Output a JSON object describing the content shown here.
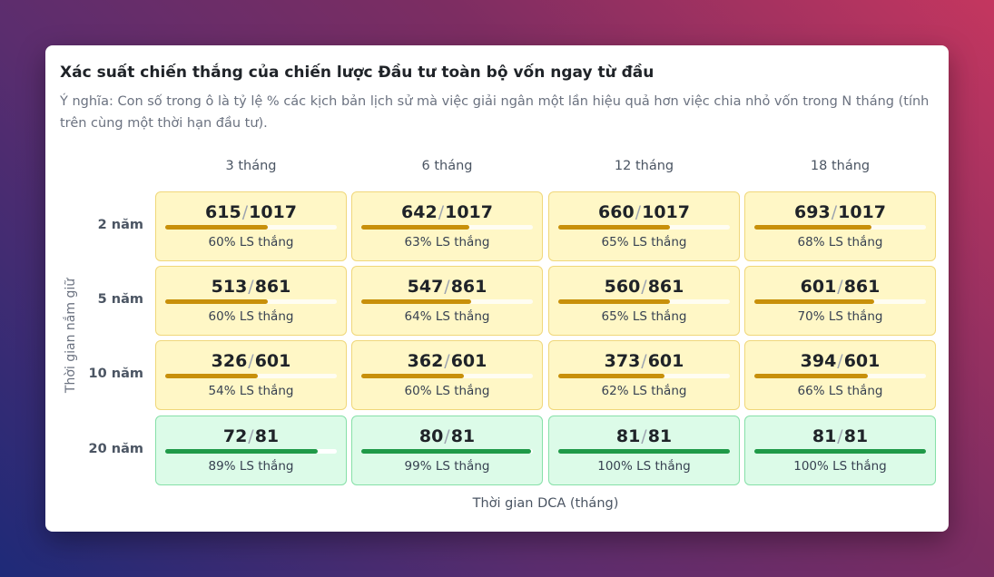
{
  "chart_data": {
    "type": "heatmap",
    "title": "Xác suất chiến thắng của chiến lược Đầu tư toàn bộ vốn ngay từ đầu",
    "subtitle": "Ý nghĩa: Con số trong ô là tỷ lệ % các kịch bản lịch sử mà việc giải ngân một lần hiệu quả hơn việc chia nhỏ vốn trong N tháng (tính trên cùng một thời hạn đầu tư).",
    "xlabel": "Thời gian DCA (tháng)",
    "ylabel": "Thời gian nắm giữ",
    "columns": [
      "3 tháng",
      "6 tháng",
      "12 tháng",
      "18 tháng"
    ],
    "rows": [
      "2 năm",
      "5 năm",
      "10 năm",
      "20 năm"
    ],
    "separator": "/",
    "cells": [
      [
        {
          "wins": "615",
          "total": "1017",
          "ratio": 0.6,
          "label": "60% LS thắng"
        },
        {
          "wins": "642",
          "total": "1017",
          "ratio": 0.63,
          "label": "63% LS thắng"
        },
        {
          "wins": "660",
          "total": "1017",
          "ratio": 0.65,
          "label": "65% LS thắng"
        },
        {
          "wins": "693",
          "total": "1017",
          "ratio": 0.68,
          "label": "68% LS thắng"
        }
      ],
      [
        {
          "wins": "513",
          "total": "861",
          "ratio": 0.6,
          "label": "60% LS thắng"
        },
        {
          "wins": "547",
          "total": "861",
          "ratio": 0.64,
          "label": "64% LS thắng"
        },
        {
          "wins": "560",
          "total": "861",
          "ratio": 0.65,
          "label": "65% LS thắng"
        },
        {
          "wins": "601",
          "total": "861",
          "ratio": 0.7,
          "label": "70% LS thắng"
        }
      ],
      [
        {
          "wins": "326",
          "total": "601",
          "ratio": 0.54,
          "label": "54% LS thắng"
        },
        {
          "wins": "362",
          "total": "601",
          "ratio": 0.6,
          "label": "60% LS thắng"
        },
        {
          "wins": "373",
          "total": "601",
          "ratio": 0.62,
          "label": "62% LS thắng"
        },
        {
          "wins": "394",
          "total": "601",
          "ratio": 0.66,
          "label": "66% LS thắng"
        }
      ],
      [
        {
          "wins": "72",
          "total": "81",
          "ratio": 0.89,
          "label": "89% LS thắng"
        },
        {
          "wins": "80",
          "total": "81",
          "ratio": 0.99,
          "label": "99% LS thắng"
        },
        {
          "wins": "81",
          "total": "81",
          "ratio": 1.0,
          "label": "100% LS thắng"
        },
        {
          "wins": "81",
          "total": "81",
          "ratio": 1.0,
          "label": "100% LS thắng"
        }
      ]
    ],
    "colors": {
      "moderate_bg": "#fff7c6",
      "moderate_bar": "#c8900a",
      "high_bg": "#dcfbe8",
      "high_bar": "#1f9a48"
    }
  }
}
